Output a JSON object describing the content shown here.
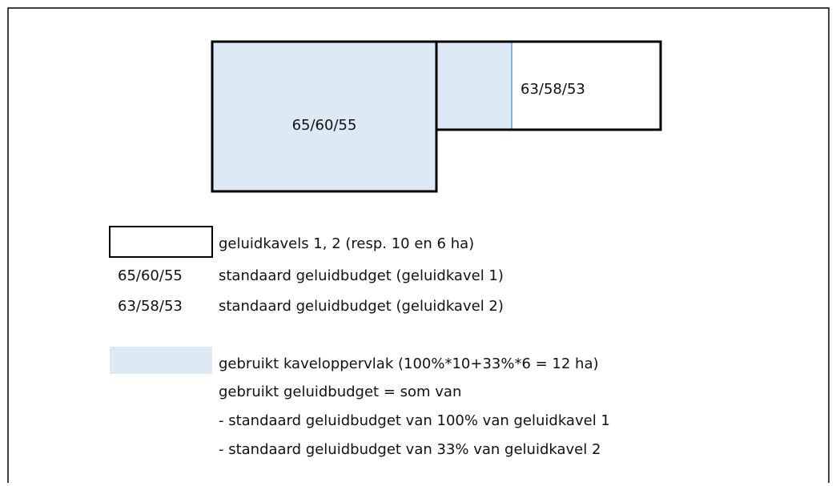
{
  "diagram": {
    "plots": [
      {
        "label": "65/60/55"
      },
      {
        "label": "63/58/53"
      }
    ],
    "legend": [
      {
        "text": "geluidkavels 1, 2 (resp. 10 en 6 ha)"
      },
      {
        "key": "65/60/55",
        "text": "standaard geluidbudget (geluidkavel 1)"
      },
      {
        "key": "63/58/53",
        "text": "standaard geluidbudget (geluidkavel 2)"
      },
      {
        "text": "gebruikt kaveloppervlak (100%*10+33%*6 = 12 ha)"
      }
    ],
    "notes": [
      "gebruikt geluidbudget = som van",
      "- standaard geluidbudget van 100% van geluidkavel 1",
      "- standaard geluidbudget van 33% van geluidkavel 2"
    ]
  }
}
